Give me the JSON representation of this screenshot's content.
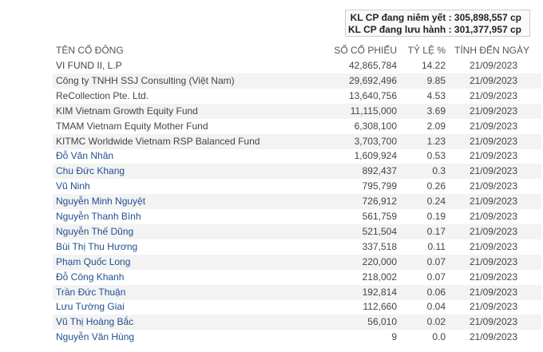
{
  "summary": {
    "listed": "KL CP đang niêm yết : 305,898,557 cp",
    "outstanding": "KL CP đang lưu hành : 301,377,957 cp"
  },
  "table": {
    "columns": [
      "TÊN CỔ ĐÔNG",
      "SỐ CỔ PHIẾU",
      "TỶ LỆ %",
      "TÍNH ĐẾN NGÀY"
    ],
    "rows": [
      [
        "VI FUND II, L.P",
        "42,865,784",
        "14.22",
        "21/09/2023"
      ],
      [
        "Công ty TNHH SSJ Consulting (Việt Nam)",
        "29,692,496",
        "9.85",
        "21/09/2023"
      ],
      [
        "ReCollection Pte. Ltd.",
        "13,640,756",
        "4.53",
        "21/09/2023"
      ],
      [
        "KIM Vietnam Growth Equity Fund",
        "11,115,000",
        "3.69",
        "21/09/2023"
      ],
      [
        "TMAM Vietnam Equity Mother Fund",
        "6,308,100",
        "2.09",
        "21/09/2023"
      ],
      [
        "KITMC Worldwide Vietnam RSP Balanced Fund",
        "3,703,700",
        "1.23",
        "21/09/2023"
      ],
      [
        "Đỗ Văn Nhân",
        "1,609,924",
        "0.53",
        "21/09/2023"
      ],
      [
        "Chu Đức Khang",
        "892,437",
        "0.3",
        "21/09/2023"
      ],
      [
        "Vũ Ninh",
        "795,799",
        "0.26",
        "21/09/2023"
      ],
      [
        "Nguyễn Minh Nguyệt",
        "726,912",
        "0.24",
        "21/09/2023"
      ],
      [
        "Nguyễn Thanh Bình",
        "561,759",
        "0.19",
        "21/09/2023"
      ],
      [
        "Nguyễn Thế Dũng",
        "521,504",
        "0.17",
        "21/09/2023"
      ],
      [
        "Bùi Thị Thu Hương",
        "337,518",
        "0.11",
        "21/09/2023"
      ],
      [
        "Phạm Quốc Long",
        "220,000",
        "0.07",
        "21/09/2023"
      ],
      [
        "Đỗ Công Khanh",
        "218,002",
        "0.07",
        "21/09/2023"
      ],
      [
        "Trần Đức Thuận",
        "192,814",
        "0.06",
        "21/09/2023"
      ],
      [
        "Lưu Tường Giai",
        "112,660",
        "0.04",
        "21/09/2023"
      ],
      [
        "Vũ Thị Hoàng Bắc",
        "56,010",
        "0.02",
        "21/09/2023"
      ],
      [
        "Nguyễn Văn Hùng",
        "9",
        "0.0",
        "21/09/2023"
      ]
    ]
  }
}
